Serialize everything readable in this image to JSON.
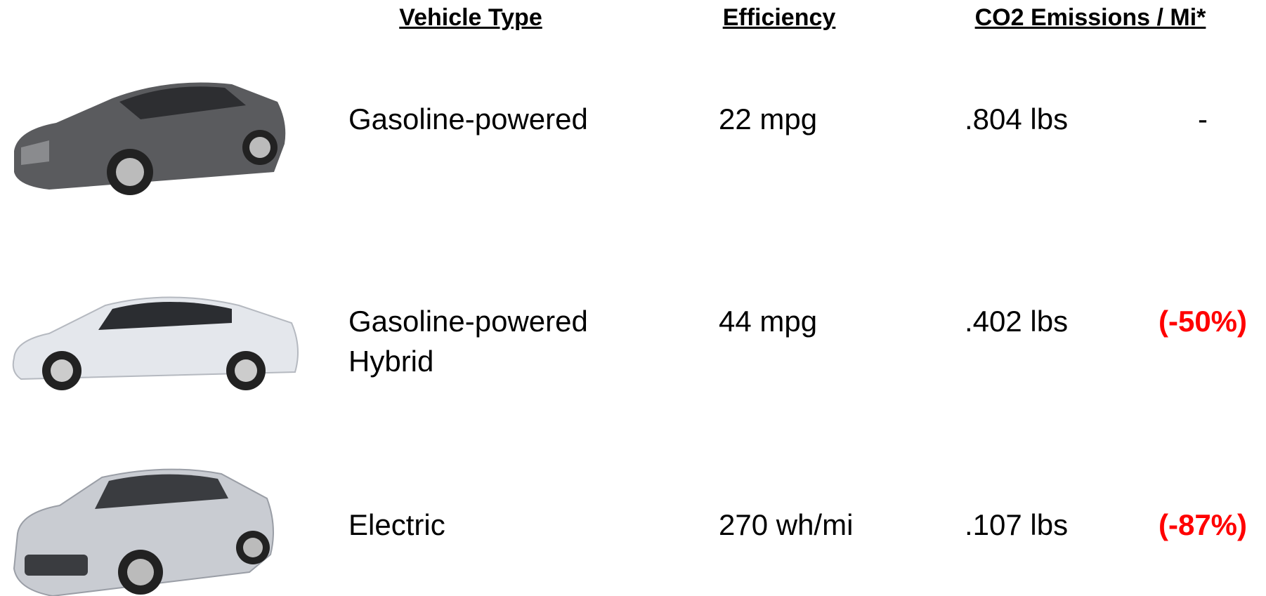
{
  "header": {
    "vehicle_type": "Vehicle Type",
    "efficiency": "Efficiency",
    "emissions": "CO2 Emissions / Mi*"
  },
  "rows": [
    {
      "type": "Gasoline-powered",
      "efficiency": "22 mpg",
      "emissions": ".804 lbs",
      "change": "-"
    },
    {
      "type": "Gasoline-powered Hybrid",
      "efficiency": "44 mpg",
      "emissions": ".402 lbs",
      "change": "(-50%)"
    },
    {
      "type": "Electric",
      "efficiency": "270 wh/mi",
      "emissions": ".107 lbs",
      "change": "(-87%)"
    }
  ]
}
